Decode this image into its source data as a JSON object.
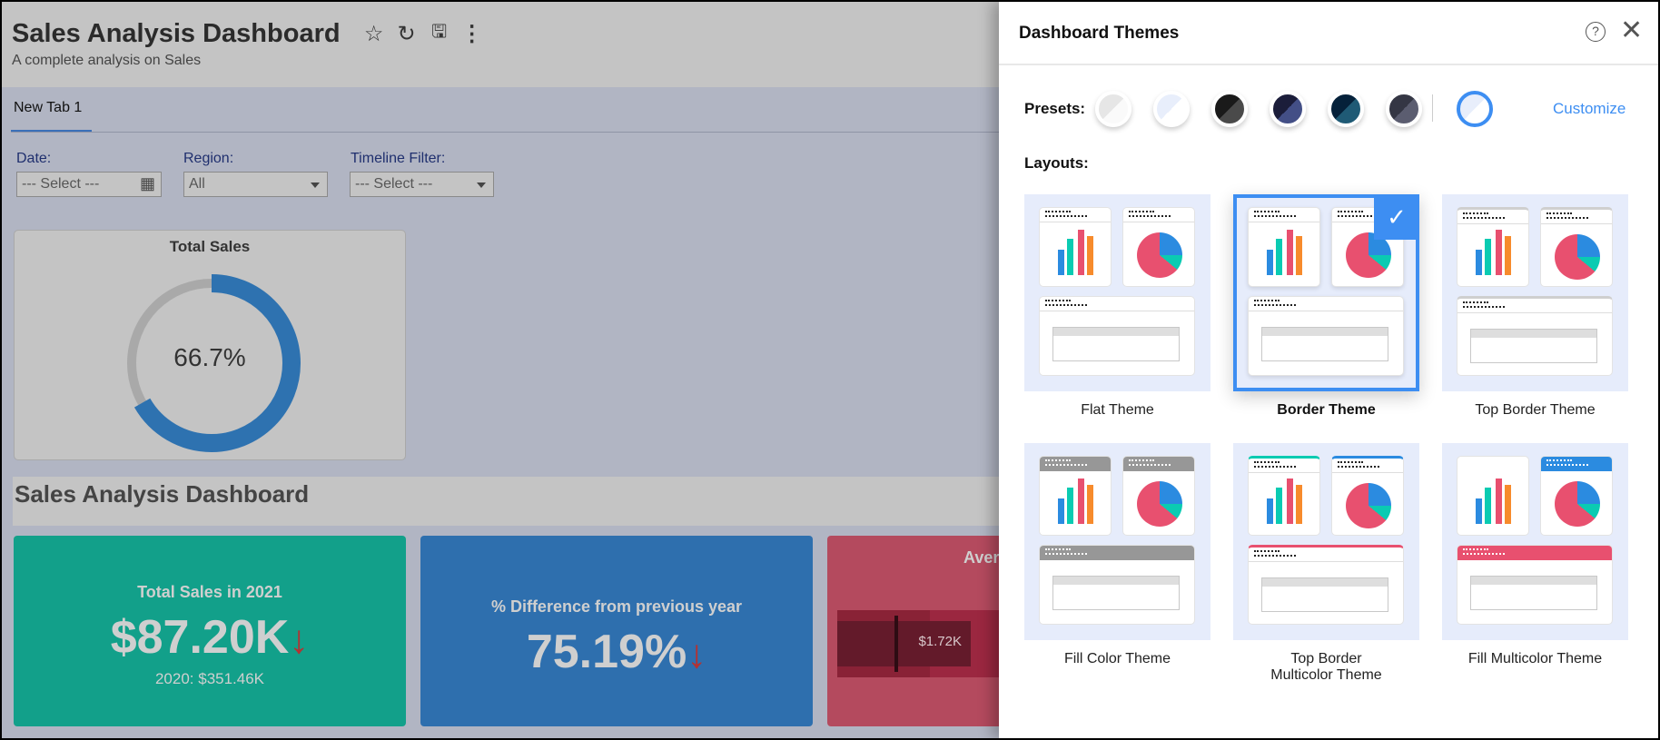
{
  "header": {
    "title": "Sales Analysis Dashboard",
    "subtitle": "A complete analysis on Sales",
    "icons": [
      "star-icon",
      "refresh-icon",
      "save-icon",
      "more-vertical-icon"
    ]
  },
  "tabs": [
    {
      "label": "New Tab 1",
      "active": true
    }
  ],
  "filters": [
    {
      "label": "Date:",
      "value": "--- Select ---",
      "icon": "calendar-icon"
    },
    {
      "label": "Region:",
      "value": "All"
    },
    {
      "label": "Timeline Filter:",
      "value": "--- Select ---"
    }
  ],
  "donut": {
    "title": "Total Sales",
    "value_label": "66.7%",
    "percent": 66.7,
    "color": "#2e72b0",
    "track": "#a9a9a9"
  },
  "section_title": "Sales Analysis Dashboard",
  "kpis": [
    {
      "title": "Total Sales in 2021",
      "value": "$87.20K",
      "trend": "down",
      "sub": "2020: $351.46K",
      "color": "#12a08a"
    },
    {
      "title": "% Difference from previous year",
      "value": "75.19%",
      "trend": "down",
      "color": "#2e6fae"
    },
    {
      "title": "Aver",
      "bullet_label": "$1.72K",
      "color": "#b44a5e"
    }
  ],
  "panel": {
    "title": "Dashboard Themes",
    "presets_label": "Presets:",
    "customize_label": "Customize",
    "layouts_label": "Layouts:",
    "presets": [
      [
        "#e6e6e6",
        "#fafafa"
      ],
      [
        "#e8eefb",
        "#ffffff"
      ],
      [
        "#1a1a1a",
        "#4a4a4a"
      ],
      [
        "#1b1d3a",
        "#434f86"
      ],
      [
        "#05213a",
        "#1f5a75"
      ],
      [
        "#343644",
        "#5b5d70"
      ]
    ],
    "selected_preset": [
      "#e8eefb",
      "#ffffff"
    ],
    "layouts": [
      {
        "label": "Flat Theme",
        "style": "flat"
      },
      {
        "label": "Border Theme",
        "style": "border",
        "selected": true
      },
      {
        "label": "Top Border Theme",
        "style": "topborder"
      },
      {
        "label": "Fill Color Theme",
        "style": "fill"
      },
      {
        "label": "Top Border Multicolor Theme",
        "style": "topmulti"
      },
      {
        "label": "Fill Multicolor Theme",
        "style": "fillmulti"
      }
    ]
  }
}
